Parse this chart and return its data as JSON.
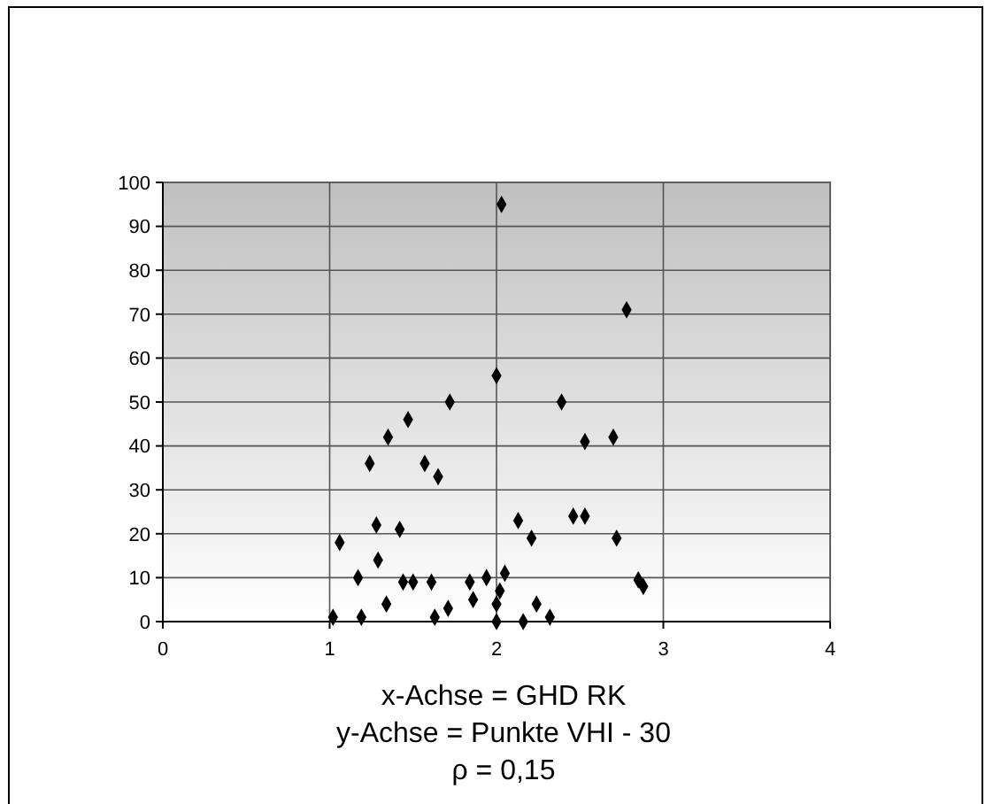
{
  "chart_data": {
    "type": "scatter",
    "marker": "diamond",
    "grid": true,
    "xlim": [
      0,
      4
    ],
    "xticks": [
      0,
      1,
      2,
      3,
      4
    ],
    "ylim": [
      0,
      100
    ],
    "yticks": [
      0,
      10,
      20,
      30,
      40,
      50,
      60,
      70,
      80,
      90,
      100
    ],
    "annotations": [
      "x-Achse = GHD RK",
      "y-Achse = Punkte VHI - 30",
      "ρ = 0,15"
    ],
    "series": [
      {
        "color": "#000000",
        "x": [
          1.02,
          1.06,
          1.17,
          1.19,
          1.24,
          1.28,
          1.29,
          1.35,
          1.34,
          1.42,
          1.44,
          1.5,
          1.47,
          1.57,
          1.61,
          1.65,
          1.63,
          1.71,
          1.72,
          1.84,
          1.86,
          1.94,
          2.0,
          2.0,
          2.02,
          2.0,
          2.03,
          2.05,
          2.16,
          2.13,
          2.21,
          2.24,
          2.32,
          2.39,
          2.46,
          2.53,
          2.53,
          2.7,
          2.72,
          2.78,
          2.85,
          2.88
        ],
        "values": [
          1,
          18,
          10,
          1,
          36,
          22,
          14,
          42,
          4,
          21,
          9,
          9,
          46,
          36,
          9,
          33,
          1,
          3,
          50,
          9,
          5,
          10,
          0,
          4,
          7,
          56,
          95,
          11,
          0,
          23,
          19,
          4,
          1,
          50,
          24,
          24,
          41,
          42,
          19,
          71,
          9.5,
          8
        ]
      }
    ]
  }
}
